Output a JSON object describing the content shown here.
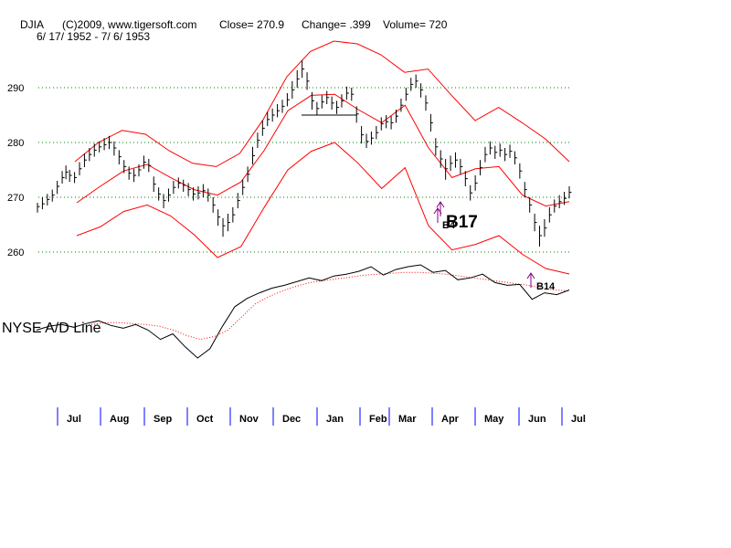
{
  "header": {
    "symbol": "DJIA",
    "copyright": "(C)2009, www.tigersoft.com",
    "close_text": "Close=  270.9",
    "change_text": "Change= .399",
    "volume_text": "Volume= 720",
    "date_range": "6/ 17/ 1952 - 7/ 6/ 1953"
  },
  "indicator_label": "NYSE A/D Line",
  "colors": {
    "price_bars": "#000000",
    "bands": "#ff0000",
    "gridlines": "#008000",
    "ad_line": "#000000",
    "ad_moving_average": "#ff0000",
    "month_ticks": "#0000ff",
    "signal_arrows": "#800080"
  },
  "chart_data": [
    {
      "type": "line",
      "title": "DJIA",
      "ylim": [
        260,
        296
      ],
      "y_ticks": [
        260,
        270,
        280,
        290
      ],
      "grid": true,
      "x_ticks": [
        "Jul",
        "Aug",
        "Sep",
        "Oct",
        "Nov",
        "Dec",
        "Jan",
        "Feb",
        "Mar",
        "Apr",
        "May",
        "Jun",
        "Jul"
      ],
      "series": [
        {
          "style": "ohlc-bars",
          "values": [
            [
              0,
              268.3,
              267.2,
              269.0
            ],
            [
              0.02,
              268.8,
              267.8,
              270.0
            ],
            [
              0.04,
              269.6,
              268.5,
              270.6
            ],
            [
              0.06,
              270.4,
              269.2,
              271.4
            ],
            [
              0.08,
              272.0,
              270.6,
              273.0
            ],
            [
              0.1,
              273.6,
              272.5,
              274.8
            ],
            [
              0.115,
              274.6,
              273.3,
              275.8
            ],
            [
              0.13,
              274.0,
              272.8,
              275.0
            ],
            [
              0.15,
              273.6,
              272.6,
              274.6
            ],
            [
              0.17,
              275.2,
              274.0,
              276.4
            ],
            [
              0.19,
              276.8,
              275.5,
              278.0
            ],
            [
              0.21,
              277.8,
              276.6,
              279.0
            ],
            [
              0.23,
              278.6,
              277.4,
              279.8
            ],
            [
              0.25,
              279.2,
              278.2,
              280.2
            ],
            [
              0.27,
              279.6,
              278.6,
              280.8
            ],
            [
              0.29,
              280.0,
              278.8,
              281.2
            ],
            [
              0.31,
              279.0,
              277.6,
              280.2
            ],
            [
              0.33,
              277.4,
              276.0,
              278.6
            ],
            [
              0.35,
              275.6,
              274.4,
              276.8
            ],
            [
              0.37,
              274.4,
              273.2,
              275.6
            ],
            [
              0.39,
              274.0,
              272.8,
              275.2
            ],
            [
              0.41,
              275.0,
              273.8,
              276.0
            ],
            [
              0.43,
              276.4,
              275.2,
              277.6
            ],
            [
              0.45,
              275.8,
              274.6,
              277.0
            ],
            [
              0.47,
              272.4,
              271.0,
              273.8
            ],
            [
              0.49,
              270.6,
              269.4,
              271.8
            ],
            [
              0.51,
              269.4,
              268.0,
              270.6
            ],
            [
              0.53,
              270.4,
              269.2,
              271.6
            ],
            [
              0.55,
              271.8,
              270.6,
              273.0
            ],
            [
              0.57,
              272.6,
              271.6,
              273.6
            ],
            [
              0.59,
              272.2,
              271.0,
              273.2
            ],
            [
              0.61,
              271.4,
              270.2,
              272.6
            ],
            [
              0.63,
              270.6,
              269.4,
              271.8
            ],
            [
              0.65,
              270.8,
              269.6,
              272.0
            ],
            [
              0.67,
              271.2,
              270.0,
              272.4
            ],
            [
              0.69,
              270.4,
              269.2,
              271.6
            ],
            [
              0.71,
              268.6,
              267.2,
              270.0
            ],
            [
              0.73,
              266.4,
              264.8,
              267.8
            ],
            [
              0.75,
              264.8,
              262.8,
              266.2
            ],
            [
              0.77,
              265.4,
              263.8,
              267.0
            ],
            [
              0.79,
              266.8,
              265.4,
              268.2
            ],
            [
              0.81,
              269.4,
              268.0,
              270.8
            ],
            [
              0.83,
              271.8,
              270.4,
              273.2
            ],
            [
              0.85,
              274.2,
              272.8,
              275.6
            ],
            [
              0.87,
              277.6,
              276.0,
              279.2
            ],
            [
              0.89,
              280.4,
              279.0,
              281.8
            ],
            [
              0.91,
              282.6,
              281.2,
              284.0
            ],
            [
              0.93,
              284.2,
              283.0,
              285.6
            ],
            [
              0.95,
              285.0,
              283.8,
              286.2
            ],
            [
              0.97,
              285.8,
              284.6,
              287.0
            ],
            [
              0.99,
              286.6,
              285.4,
              287.8
            ],
            [
              1.01,
              287.8,
              286.6,
              289.0
            ],
            [
              1.03,
              289.6,
              288.0,
              291.2
            ],
            [
              1.05,
              291.6,
              290.0,
              293.2
            ],
            [
              1.07,
              293.4,
              291.8,
              295.0
            ],
            [
              1.09,
              291.2,
              289.6,
              292.8
            ],
            [
              1.11,
              287.6,
              286.0,
              289.2
            ],
            [
              1.13,
              286.2,
              285.0,
              287.4
            ],
            [
              1.15,
              287.4,
              286.2,
              288.6
            ],
            [
              1.17,
              288.2,
              287.0,
              289.4
            ],
            [
              1.19,
              287.2,
              286.0,
              288.4
            ],
            [
              1.21,
              286.4,
              285.2,
              287.6
            ],
            [
              1.23,
              287.6,
              286.4,
              288.8
            ],
            [
              1.25,
              289.0,
              287.8,
              290.2
            ],
            [
              1.27,
              288.8,
              287.6,
              290.0
            ],
            [
              1.29,
              285.2,
              283.6,
              286.6
            ],
            [
              1.31,
              281.4,
              279.8,
              283.0
            ],
            [
              1.33,
              280.2,
              279.0,
              281.6
            ],
            [
              1.35,
              280.8,
              279.6,
              282.0
            ],
            [
              1.37,
              281.8,
              280.6,
              283.0
            ],
            [
              1.39,
              283.4,
              282.2,
              284.6
            ],
            [
              1.41,
              283.8,
              282.6,
              285.0
            ],
            [
              1.43,
              283.6,
              282.4,
              284.8
            ],
            [
              1.45,
              284.8,
              283.6,
              286.0
            ],
            [
              1.47,
              286.8,
              285.6,
              288.0
            ],
            [
              1.49,
              288.8,
              287.6,
              290.0
            ],
            [
              1.51,
              290.6,
              289.4,
              291.8
            ],
            [
              1.53,
              291.2,
              290.0,
              292.4
            ],
            [
              1.55,
              289.6,
              288.2,
              290.8
            ],
            [
              1.57,
              287.2,
              285.8,
              288.6
            ],
            [
              1.59,
              283.6,
              282.0,
              285.2
            ],
            [
              1.61,
              279.2,
              277.6,
              280.8
            ],
            [
              1.63,
              277.0,
              275.4,
              278.6
            ],
            [
              1.65,
              275.2,
              273.2,
              277.0
            ],
            [
              1.67,
              276.2,
              274.8,
              277.6
            ],
            [
              1.69,
              276.8,
              275.4,
              278.2
            ],
            [
              1.71,
              275.6,
              274.2,
              277.0
            ],
            [
              1.73,
              273.4,
              272.0,
              274.8
            ],
            [
              1.75,
              270.8,
              269.4,
              272.2
            ],
            [
              1.77,
              272.6,
              271.2,
              274.0
            ],
            [
              1.79,
              275.4,
              274.0,
              276.8
            ],
            [
              1.81,
              277.8,
              276.4,
              279.2
            ],
            [
              1.83,
              279.0,
              277.8,
              280.2
            ],
            [
              1.85,
              278.2,
              277.0,
              279.4
            ],
            [
              1.87,
              278.6,
              277.4,
              279.8
            ],
            [
              1.89,
              277.8,
              276.6,
              279.0
            ],
            [
              1.91,
              278.4,
              277.2,
              279.6
            ],
            [
              1.93,
              277.2,
              276.0,
              278.4
            ],
            [
              1.95,
              274.8,
              273.4,
              276.2
            ],
            [
              1.97,
              271.4,
              270.0,
              272.8
            ],
            [
              1.99,
              268.6,
              267.2,
              270.0
            ],
            [
              2.01,
              265.4,
              263.8,
              267.0
            ],
            [
              2.03,
              263.0,
              261.0,
              264.8
            ],
            [
              2.05,
              264.4,
              262.8,
              266.0
            ],
            [
              2.07,
              266.8,
              265.4,
              268.2
            ],
            [
              2.09,
              268.4,
              267.2,
              269.6
            ],
            [
              2.11,
              269.2,
              268.0,
              270.4
            ],
            [
              2.13,
              269.8,
              268.6,
              271.0
            ],
            [
              2.15,
              270.9,
              269.8,
              272.0
            ]
          ]
        },
        {
          "name": "",
          "style": "upper-band",
          "values": [
            276.5,
            280.0,
            282.2,
            281.5,
            278.5,
            276.2,
            275.6,
            278.0,
            284.2,
            292.0,
            296.6,
            298.5,
            298.0,
            296.0,
            292.8,
            293.4,
            288.6,
            284.0,
            286.4,
            283.6,
            280.6,
            276.5
          ]
        },
        {
          "name": "",
          "style": "moving-average",
          "values": [
            269.0,
            272.0,
            274.8,
            276.0,
            273.6,
            271.4,
            270.4,
            272.8,
            278.6,
            285.8,
            288.6,
            288.8,
            286.0,
            283.6,
            286.8,
            279.0,
            273.6,
            275.2,
            275.6,
            270.4,
            268.4,
            269.2
          ]
        },
        {
          "name": "",
          "style": "lower-band",
          "values": [
            263.0,
            264.6,
            267.4,
            268.6,
            266.6,
            263.2,
            259.0,
            261.0,
            268.2,
            275.0,
            278.4,
            280.0,
            276.2,
            271.6,
            275.4,
            264.8,
            260.4,
            261.4,
            263.0,
            259.6,
            257.0,
            256.0
          ]
        }
      ]
    },
    {
      "type": "line",
      "title": "NYSE A/D Line",
      "grid": false,
      "series": [
        {
          "name": "",
          "style": "ad-line",
          "values": [
            0.3,
            0.34,
            0.36,
            0.33,
            0.37,
            0.4,
            0.35,
            0.32,
            0.36,
            0.3,
            0.2,
            0.26,
            0.12,
            0.0,
            0.1,
            0.34,
            0.55,
            0.64,
            0.7,
            0.75,
            0.78,
            0.82,
            0.86,
            0.83,
            0.88,
            0.9,
            0.93,
            0.98,
            0.89,
            0.95,
            0.98,
            1.0,
            0.92,
            0.94,
            0.84,
            0.86,
            0.9,
            0.81,
            0.78,
            0.79,
            0.63,
            0.7,
            0.68,
            0.73
          ]
        },
        {
          "name": "",
          "style": "ad-moving-average",
          "values": [
            0.36,
            0.38,
            0.38,
            0.37,
            0.36,
            0.34,
            0.3,
            0.24,
            0.2,
            0.23,
            0.3,
            0.44,
            0.58,
            0.66,
            0.72,
            0.77,
            0.81,
            0.83,
            0.85,
            0.87,
            0.89,
            0.9,
            0.91,
            0.92,
            0.92,
            0.91,
            0.9,
            0.88,
            0.86,
            0.84,
            0.82,
            0.8,
            0.78,
            0.75,
            0.73,
            0.72
          ]
        }
      ]
    }
  ],
  "signals": [
    {
      "label": "B4",
      "panel": "price"
    },
    {
      "label": "B17",
      "panel": "price"
    },
    {
      "label": "B14",
      "panel": "ad"
    }
  ]
}
